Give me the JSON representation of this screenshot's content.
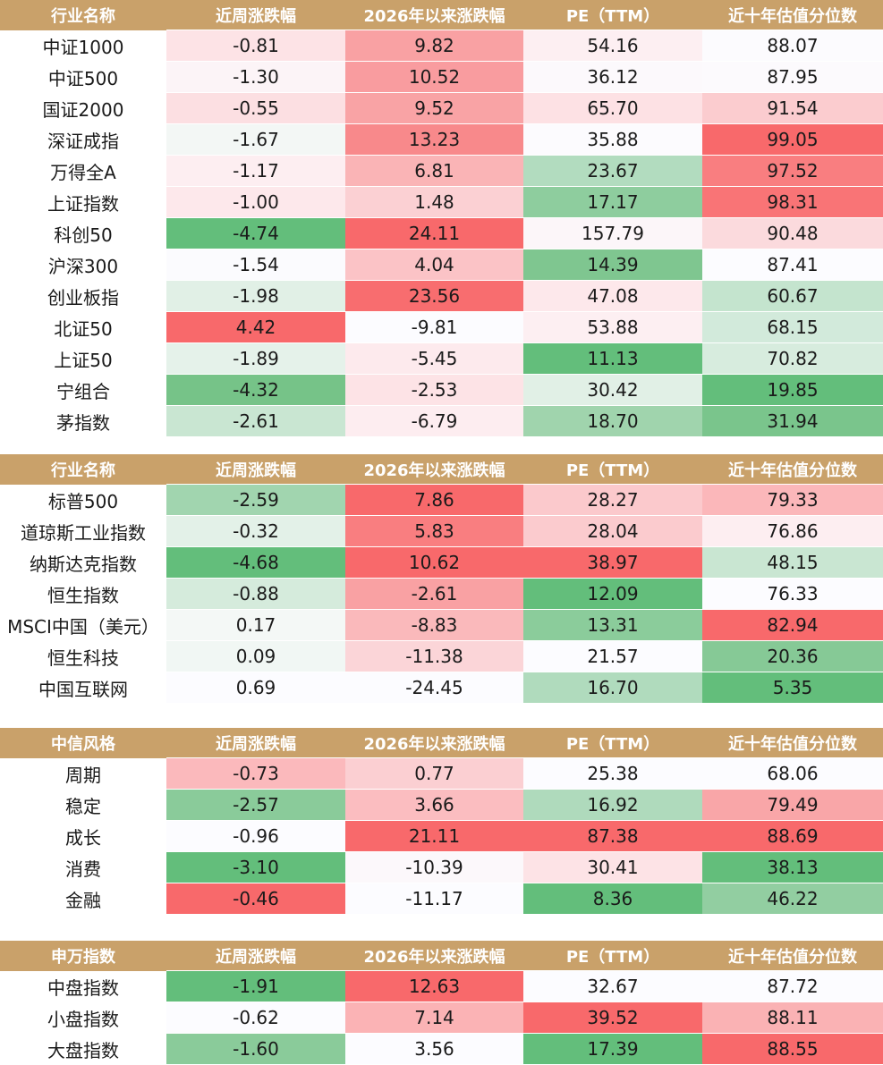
{
  "headers": [
    "近周涨跌幅",
    "2026年以来涨跌幅",
    "PE（TTM）",
    "近十年估值分位数"
  ],
  "tables": [
    {
      "title": "行业名称",
      "rows": [
        {
          "name": "中证1000",
          "values": [
            "-0.81",
            "9.82",
            "54.16",
            "88.07"
          ],
          "colors": [
            "#fde3e6",
            "#f9a1a3",
            "#fdeff2",
            "#fcfbfe"
          ]
        },
        {
          "name": "中证500",
          "values": [
            "-1.30",
            "10.52",
            "36.12",
            "87.95"
          ],
          "colors": [
            "#fcf4f7",
            "#f99c9f",
            "#fcf9fc",
            "#fcfafd"
          ]
        },
        {
          "name": "国证2000",
          "values": [
            "-0.55",
            "9.52",
            "65.70",
            "91.54"
          ],
          "colors": [
            "#fcdfe2",
            "#f9a3a5",
            "#fde1e4",
            "#fbcccf"
          ]
        },
        {
          "name": "深证成指",
          "values": [
            "-1.67",
            "13.23",
            "35.88",
            "99.05"
          ],
          "colors": [
            "#f3f7f5",
            "#f8898b",
            "#fcfbfe",
            "#f8696b"
          ]
        },
        {
          "name": "万得全A",
          "values": [
            "-1.17",
            "6.81",
            "23.67",
            "97.52"
          ],
          "colors": [
            "#fdeef1",
            "#fab4b6",
            "#b2dcbf",
            "#f97e80"
          ]
        },
        {
          "name": "上证指数",
          "values": [
            "-1.00",
            "1.48",
            "17.17",
            "98.31"
          ],
          "colors": [
            "#fde8eb",
            "#fbd0d3",
            "#8ecd9e",
            "#f97476"
          ]
        },
        {
          "name": "科创50",
          "values": [
            "-4.74",
            "24.11",
            "157.79",
            "90.48"
          ],
          "colors": [
            "#63be7b",
            "#f8696b",
            "#fcf6f9",
            "#fbdadd"
          ]
        },
        {
          "name": "沪深300",
          "values": [
            "-1.54",
            "4.04",
            "14.39",
            "87.41"
          ],
          "colors": [
            "#fbfbfe",
            "#fbc3c6",
            "#7fc690",
            "#fcfcff"
          ]
        },
        {
          "name": "创业板指",
          "values": [
            "-1.98",
            "23.56",
            "47.08",
            "60.67"
          ],
          "colors": [
            "#e1f0e6",
            "#f86d6f",
            "#fde8eb",
            "#c4e4ce"
          ]
        },
        {
          "name": "北证50",
          "values": [
            "4.42",
            "-9.81",
            "53.88",
            "68.15"
          ],
          "colors": [
            "#f8696b",
            "#fcfcff",
            "#fdeff2",
            "#d2eadb"
          ]
        },
        {
          "name": "上证50",
          "values": [
            "-1.89",
            "-5.45",
            "11.13",
            "70.82"
          ],
          "colors": [
            "#e5f2ea",
            "#fdeaed",
            "#63be7b",
            "#d7ecde"
          ]
        },
        {
          "name": "宁组合",
          "values": [
            "-4.32",
            "-2.53",
            "30.42",
            "19.85"
          ],
          "colors": [
            "#76c388",
            "#fde3e6",
            "#e1f0e6",
            "#63be7b"
          ]
        },
        {
          "name": "茅指数",
          "values": [
            "-2.61",
            "-6.79",
            "18.70",
            "31.94"
          ],
          "colors": [
            "#c9e6d2",
            "#fdedf0",
            "#a0d4ad",
            "#7ac58c"
          ]
        }
      ]
    },
    {
      "title": "行业名称",
      "rows": [
        {
          "name": "标普500",
          "values": [
            "-2.59",
            "7.86",
            "28.27",
            "79.33"
          ],
          "colors": [
            "#a1d5af",
            "#f8696b",
            "#fbc9cc",
            "#fbb7ba"
          ]
        },
        {
          "name": "道琼斯工业指数",
          "values": [
            "-0.32",
            "5.83",
            "28.04",
            "76.86"
          ],
          "colors": [
            "#e3f1e8",
            "#f97e80",
            "#fbcbce",
            "#fdeef1"
          ]
        },
        {
          "name": "纳斯达克指数",
          "values": [
            "-4.68",
            "10.62",
            "38.97",
            "48.15"
          ],
          "colors": [
            "#63be7b",
            "#f8696b",
            "#f8696b",
            "#c9e6d2"
          ]
        },
        {
          "name": "恒生指数",
          "values": [
            "-0.88",
            "-2.61",
            "12.09",
            "76.33"
          ],
          "colors": [
            "#d5ebdc",
            "#f9a1a3",
            "#63be7b",
            "#fcfcff"
          ]
        },
        {
          "name": "MSCI中国（美元）",
          "values": [
            "0.17",
            "-8.83",
            "13.31",
            "82.94"
          ],
          "colors": [
            "#f4f8f6",
            "#fab9bb",
            "#8bcc9b",
            "#f8696b"
          ]
        },
        {
          "name": "恒生科技",
          "values": [
            "0.09",
            "-11.38",
            "21.57",
            "20.36"
          ],
          "colors": [
            "#f1f7f4",
            "#fbd5d8",
            "#fcfcff",
            "#86c996"
          ]
        },
        {
          "name": "中国互联网",
          "values": [
            "0.69",
            "-24.45",
            "16.70",
            "5.35"
          ],
          "colors": [
            "#fcfcff",
            "#fcfcff",
            "#b0dbbd",
            "#63be7b"
          ]
        }
      ]
    },
    {
      "title": "中信风格",
      "rows": [
        {
          "name": "周期",
          "values": [
            "-0.73",
            "0.77",
            "25.38",
            "68.06"
          ],
          "colors": [
            "#fbb9bc",
            "#fbcfd2",
            "#fcfcff",
            "#fcfcff"
          ]
        },
        {
          "name": "稳定",
          "values": [
            "-2.57",
            "3.66",
            "16.92",
            "79.49"
          ],
          "colors": [
            "#8acb9a",
            "#fbbdc0",
            "#afdabc",
            "#f9a6a8"
          ]
        },
        {
          "name": "成长",
          "values": [
            "-0.96",
            "21.11",
            "87.38",
            "88.69"
          ],
          "colors": [
            "#fcfcff",
            "#f8696b",
            "#f8696b",
            "#f8696b"
          ]
        },
        {
          "name": "消费",
          "values": [
            "-3.10",
            "-10.39",
            "30.41",
            "38.13"
          ],
          "colors": [
            "#63be7b",
            "#fcf8fb",
            "#fde3e6",
            "#63be7b"
          ]
        },
        {
          "name": "金融",
          "values": [
            "-0.46",
            "-11.17",
            "8.36",
            "46.22"
          ],
          "colors": [
            "#f8696b",
            "#fcfcff",
            "#63be7b",
            "#92cea1"
          ]
        }
      ]
    },
    {
      "title": "申万指数",
      "rows": [
        {
          "name": "中盘指数",
          "values": [
            "-1.91",
            "12.63",
            "32.67",
            "87.72"
          ],
          "colors": [
            "#63be7b",
            "#f8696b",
            "#fcfcff",
            "#fcfcff"
          ]
        },
        {
          "name": "小盘指数",
          "values": [
            "-0.62",
            "7.14",
            "39.52",
            "88.11"
          ],
          "colors": [
            "#fcfcff",
            "#fbb3b5",
            "#f8696b",
            "#fab2b4"
          ]
        },
        {
          "name": "大盘指数",
          "values": [
            "-1.60",
            "3.56",
            "17.39",
            "88.55"
          ],
          "colors": [
            "#8acb9a",
            "#fcfcff",
            "#63be7b",
            "#f8696b"
          ]
        }
      ]
    }
  ]
}
